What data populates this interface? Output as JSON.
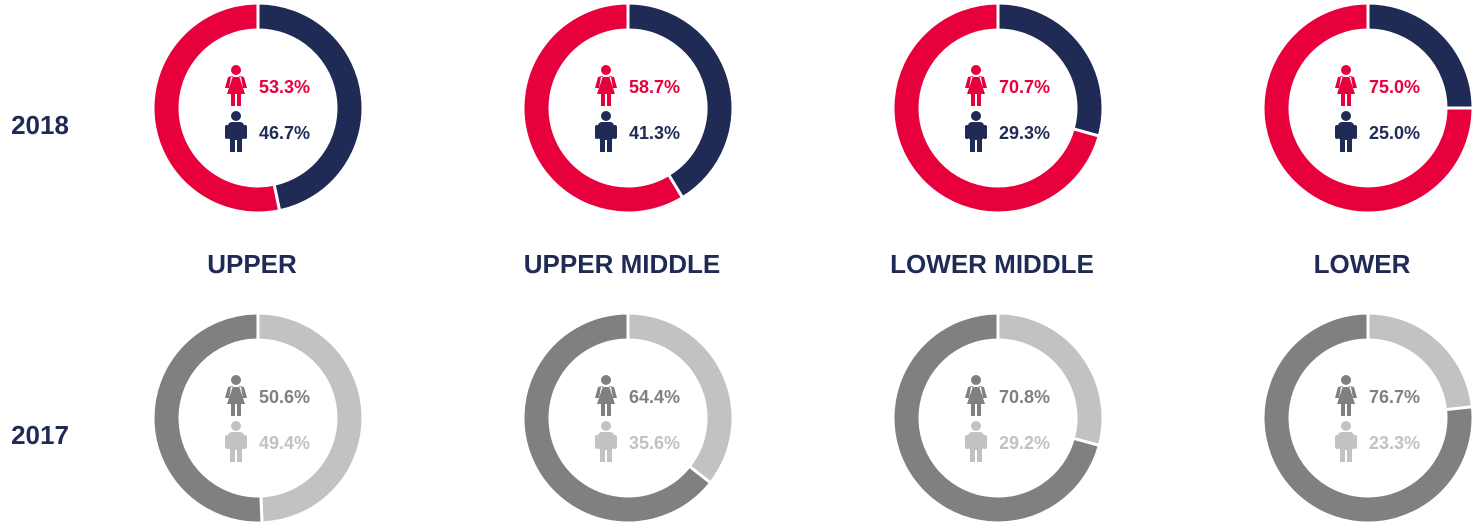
{
  "chart_data": [
    {
      "type": "donut",
      "title": "UPPER",
      "series": [
        {
          "name": "2018",
          "values": [
            53.3,
            46.7
          ],
          "value_labels": [
            "53.3%",
            "46.7%"
          ],
          "colors": [
            "#e8003d",
            "#1f2a55"
          ]
        },
        {
          "name": "2017",
          "values": [
            50.6,
            49.4
          ],
          "value_labels": [
            "50.6%",
            "49.4%"
          ],
          "colors": [
            "#808080",
            "#c2c2c2"
          ]
        }
      ]
    },
    {
      "type": "donut",
      "title": "UPPER MIDDLE",
      "series": [
        {
          "name": "2018",
          "values": [
            58.7,
            41.3
          ],
          "value_labels": [
            "58.7%",
            "41.3%"
          ],
          "colors": [
            "#e8003d",
            "#1f2a55"
          ]
        },
        {
          "name": "2017",
          "values": [
            64.4,
            35.6
          ],
          "value_labels": [
            "64.4%",
            "35.6%"
          ],
          "colors": [
            "#808080",
            "#c2c2c2"
          ]
        }
      ]
    },
    {
      "type": "donut",
      "title": "LOWER MIDDLE",
      "series": [
        {
          "name": "2018",
          "values": [
            70.7,
            29.3
          ],
          "value_labels": [
            "70.7%",
            "29.3%"
          ],
          "colors": [
            "#e8003d",
            "#1f2a55"
          ]
        },
        {
          "name": "2017",
          "values": [
            70.8,
            29.2
          ],
          "value_labels": [
            "70.8%",
            "29.2%"
          ],
          "colors": [
            "#808080",
            "#c2c2c2"
          ]
        }
      ]
    },
    {
      "type": "donut",
      "title": "LOWER",
      "series": [
        {
          "name": "2018",
          "values": [
            75.0,
            25.0
          ],
          "value_labels": [
            "75.0%",
            "25.0%"
          ],
          "colors": [
            "#e8003d",
            "#1f2a55"
          ]
        },
        {
          "name": "2017",
          "values": [
            76.7,
            23.3
          ],
          "value_labels": [
            "76.7%",
            "23.3%"
          ],
          "colors": [
            "#808080",
            "#c2c2c2"
          ]
        }
      ]
    }
  ]
}
